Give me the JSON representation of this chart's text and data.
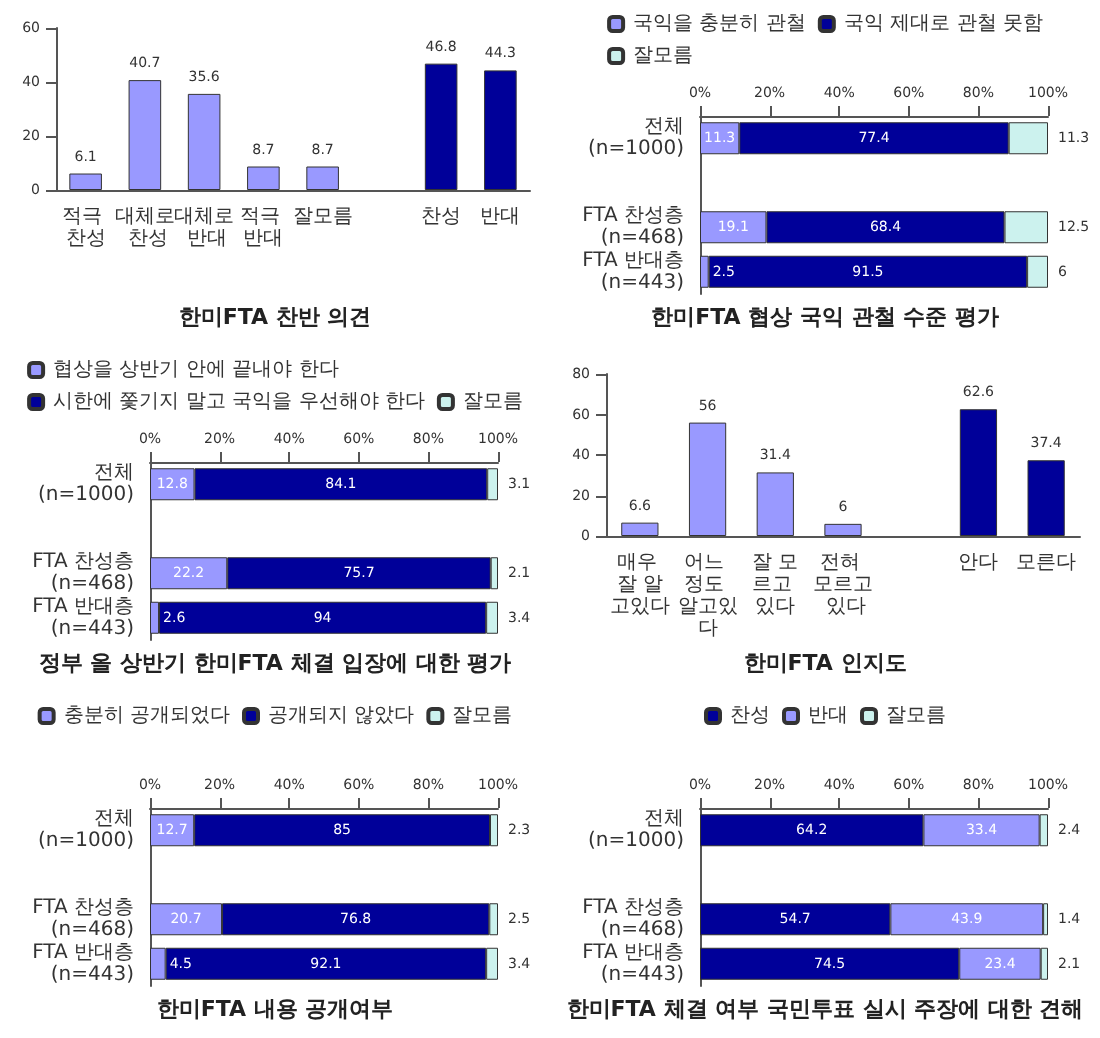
{
  "chart_data": [
    {
      "type": "bar",
      "title": "한미FTA 찬반 의견",
      "categories": [
        "적극 찬성",
        "대체로 찬성",
        "대체로 반대",
        "적극 반대",
        "잘모름",
        null,
        "찬성",
        "반대"
      ],
      "values": [
        6.1,
        40.7,
        35.6,
        8.7,
        8.7,
        null,
        46.8,
        44.3
      ],
      "colors": [
        "#9999ff",
        "#9999ff",
        "#9999ff",
        "#9999ff",
        "#9999ff",
        "#9999ff",
        "#000099",
        "#000099"
      ],
      "ylim": [
        0,
        60
      ],
      "yticks": [
        0,
        20,
        40,
        60
      ],
      "data_labels": true
    },
    {
      "type": "bar",
      "orientation": "horizontal",
      "stacked": true,
      "title": "한미FTA 협상 국익 관철 수준 평가",
      "categories": [
        "전체(n=1000)",
        null,
        "FTA 찬성층(n=468)",
        "FTA 반대층(n=443)"
      ],
      "series": [
        {
          "name": "국익을 충분히 관철",
          "color": "#9999ff",
          "values": [
            11.3,
            null,
            19.1,
            2.5
          ]
        },
        {
          "name": "국익 제대로 관철 못함",
          "color": "#000099",
          "values": [
            77.4,
            null,
            68.4,
            91.5
          ]
        },
        {
          "name": "잘모름",
          "color": "#ccf2ee",
          "values": [
            11.3,
            null,
            12.5,
            6.0
          ]
        }
      ],
      "xlim": [
        0,
        100
      ],
      "xticks": [
        {
          "value": 0,
          "label": "0%"
        },
        {
          "value": 20,
          "label": "20%"
        },
        {
          "value": 40,
          "label": "40%"
        },
        {
          "value": 60,
          "label": "60%"
        },
        {
          "value": 80,
          "label": "80%"
        },
        {
          "value": 100,
          "label": "100%"
        }
      ],
      "legend": "top",
      "data_labels": true
    },
    {
      "type": "bar",
      "orientation": "horizontal",
      "stacked": true,
      "title": "정부 올 상반기 한미FTA 체결 입장에 대한 평가",
      "categories": [
        "전체(n=1000)",
        null,
        "FTA 찬성층(n=468)",
        "FTA 반대층(n=443)"
      ],
      "series": [
        {
          "name": "협상을 상반기 안에 끝내야 한다",
          "color": "#9999ff",
          "values": [
            12.8,
            null,
            22.2,
            2.6
          ]
        },
        {
          "name": "시한에 쫓기지 말고 국익을 우선해야 한다",
          "color": "#000099",
          "values": [
            84.1,
            null,
            75.7,
            94.0
          ]
        },
        {
          "name": "잘모름",
          "color": "#ccf2ee",
          "values": [
            3.1,
            null,
            2.1,
            3.4
          ]
        }
      ],
      "xlim": [
        0,
        100
      ],
      "xticks": [
        {
          "value": 0,
          "label": "0%"
        },
        {
          "value": 20,
          "label": "20%"
        },
        {
          "value": 40,
          "label": "40%"
        },
        {
          "value": 60,
          "label": "60%"
        },
        {
          "value": 80,
          "label": "80%"
        },
        {
          "value": 100,
          "label": "100%"
        }
      ],
      "legend": "top",
      "data_labels": true
    },
    {
      "type": "bar",
      "title": "한미FTA 인지도",
      "categories": [
        "매우 잘 알고있다",
        "어느 정도 알고있다",
        "잘 모르고 있다",
        "전혀 모르고 있다",
        null,
        "안다",
        "모른다"
      ],
      "values": [
        6.6,
        56.0,
        31.4,
        6.0,
        null,
        62.6,
        37.4
      ],
      "colors": [
        "#9999ff",
        "#9999ff",
        "#9999ff",
        "#9999ff",
        "#9999ff",
        "#000099",
        "#000099"
      ],
      "ylim": [
        0,
        80
      ],
      "yticks": [
        0,
        20,
        40,
        60,
        80
      ],
      "data_labels": true
    },
    {
      "type": "bar",
      "orientation": "horizontal",
      "stacked": true,
      "title": "한미FTA 내용 공개여부",
      "categories": [
        "전체(n=1000)",
        null,
        "FTA 찬성층(n=468)",
        "FTA 반대층(n=443)"
      ],
      "series": [
        {
          "name": "충분히 공개되었다",
          "color": "#9999ff",
          "values": [
            12.7,
            null,
            20.7,
            4.5
          ]
        },
        {
          "name": "공개되지 않았다",
          "color": "#000099",
          "values": [
            85.0,
            null,
            76.8,
            92.1
          ]
        },
        {
          "name": "잘모름",
          "color": "#ccf2ee",
          "values": [
            2.3,
            null,
            2.5,
            3.4
          ]
        }
      ],
      "xlim": [
        0,
        100
      ],
      "xticks": [
        {
          "value": 0,
          "label": "0%"
        },
        {
          "value": 20,
          "label": "20%"
        },
        {
          "value": 40,
          "label": "40%"
        },
        {
          "value": 60,
          "label": "60%"
        },
        {
          "value": 80,
          "label": "80%"
        },
        {
          "value": 100,
          "label": "100%"
        }
      ],
      "legend": "top",
      "data_labels": true
    },
    {
      "type": "bar",
      "orientation": "horizontal",
      "stacked": true,
      "title": "한미FTA 체결 여부 국민투표 실시 주장에 대한 견해",
      "categories": [
        "전체(n=1000)",
        null,
        "FTA 찬성층(n=468)",
        "FTA 반대층(n=443)"
      ],
      "series": [
        {
          "name": "찬성",
          "color": "#000099",
          "values": [
            64.2,
            null,
            54.7,
            74.5
          ]
        },
        {
          "name": "반대",
          "color": "#9999ff",
          "values": [
            33.4,
            null,
            43.9,
            23.4
          ]
        },
        {
          "name": "잘모름",
          "color": "#ccf2ee",
          "values": [
            2.4,
            null,
            1.4,
            2.1
          ]
        }
      ],
      "xlim": [
        0,
        100
      ],
      "xticks": [
        {
          "value": 0,
          "label": "0%"
        },
        {
          "value": 20,
          "label": "20%"
        },
        {
          "value": 40,
          "label": "40%"
        },
        {
          "value": 60,
          "label": "60%"
        },
        {
          "value": 80,
          "label": "80%"
        },
        {
          "value": 100,
          "label": "100%"
        }
      ],
      "legend": "top",
      "data_labels": true
    }
  ]
}
